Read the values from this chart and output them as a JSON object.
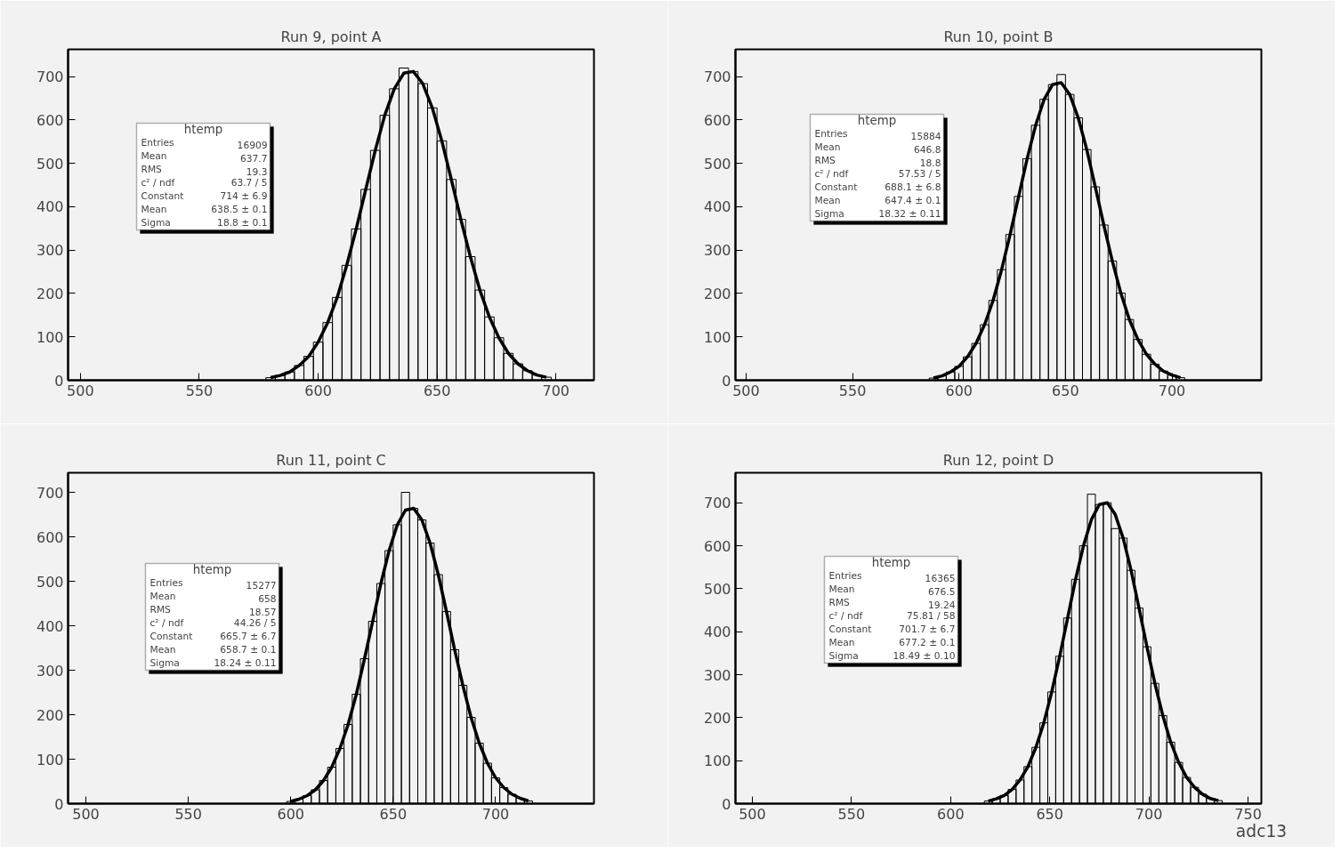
{
  "chart_data": [
    {
      "type": "histogram",
      "title": "Run 9, point A",
      "xlim": [
        494.8,
        716
      ],
      "ylim": [
        0,
        763
      ],
      "xticks": [
        500,
        550,
        600,
        650,
        700
      ],
      "yticks": [
        0,
        100,
        200,
        300,
        400,
        500,
        600,
        700
      ],
      "grid": false,
      "series": [
        {
          "color": "#000000",
          "bins": [
            578,
            582,
            586,
            590,
            594,
            598,
            602,
            606,
            610,
            614,
            618,
            622,
            626,
            630,
            634,
            638,
            642,
            646,
            650,
            654,
            658,
            662,
            666,
            670,
            674,
            678,
            682,
            686,
            690,
            694,
            698
          ],
          "values": [
            6,
            11,
            19,
            34,
            55,
            88,
            133,
            191,
            265,
            349,
            440,
            530,
            611,
            672,
            720,
            712,
            684,
            628,
            552,
            463,
            371,
            285,
            208,
            146,
            98,
            62,
            38,
            22,
            12,
            7
          ]
        },
        {
          "type": "line",
          "color": "#000000",
          "x": [
            580,
            584,
            588,
            592,
            596,
            600,
            604,
            608,
            612,
            616,
            620,
            624,
            628,
            632,
            636,
            640,
            644,
            648,
            652,
            656,
            660,
            664,
            668,
            672,
            676,
            680,
            684,
            688,
            692,
            696
          ],
          "values": [
            6,
            11,
            19,
            34,
            55,
            88,
            133,
            191,
            265,
            349,
            440,
            530,
            611,
            672,
            708,
            712,
            684,
            628,
            552,
            463,
            371,
            285,
            208,
            146,
            98,
            62,
            38,
            22,
            12,
            7
          ]
        }
      ],
      "annotations": [
        "htemp",
        "Entries",
        "16909",
        "Mean",
        "637.7",
        "RMS",
        "19.3",
        "c² / ndf",
        "63.7 / 5",
        "Constant",
        "714 ± 6.9",
        "Mean",
        "638.5 ± 0.1",
        "Sigma",
        "18.8 ± 0.1"
      ]
    },
    {
      "type": "histogram",
      "title": "Run 10, point B",
      "xlim": [
        495,
        742
      ],
      "ylim": [
        0,
        763
      ],
      "xticks": [
        500,
        550,
        600,
        650,
        700
      ],
      "yticks": [
        0,
        100,
        200,
        300,
        400,
        500,
        600,
        700
      ],
      "grid": false,
      "series": [
        {
          "color": "#000000",
          "bins": [
            586,
            590,
            594,
            598,
            602,
            606,
            610,
            614,
            618,
            622,
            626,
            630,
            634,
            638,
            642,
            646,
            650,
            654,
            658,
            662,
            666,
            670,
            674,
            678,
            682,
            686,
            690,
            694,
            698,
            702,
            706
          ],
          "values": [
            5,
            10,
            19,
            32,
            54,
            85,
            128,
            184,
            255,
            336,
            424,
            511,
            588,
            648,
            682,
            705,
            659,
            605,
            532,
            446,
            358,
            275,
            201,
            140,
            94,
            60,
            37,
            21,
            12,
            6
          ]
        },
        {
          "type": "line",
          "color": "#000000",
          "x": [
            588,
            592,
            596,
            600,
            604,
            608,
            612,
            616,
            620,
            624,
            628,
            632,
            636,
            640,
            644,
            648,
            652,
            656,
            660,
            664,
            668,
            672,
            676,
            680,
            684,
            688,
            692,
            696,
            700,
            704
          ],
          "values": [
            5,
            10,
            19,
            32,
            54,
            85,
            128,
            184,
            255,
            336,
            424,
            511,
            588,
            648,
            682,
            686,
            659,
            605,
            532,
            446,
            358,
            275,
            201,
            140,
            94,
            60,
            37,
            21,
            12,
            6
          ]
        }
      ],
      "annotations": [
        "htemp",
        "Entries",
        "15884",
        "Mean",
        "646.8",
        "RMS",
        "18.8",
        "c² / ndf",
        "57.53 / 5",
        "Constant",
        "688.1 ± 6.8",
        "Mean",
        "647.4 ± 0.1",
        "Sigma",
        "18.32 ± 0.11"
      ]
    },
    {
      "type": "histogram",
      "title": "Run 11, point C",
      "xlim": [
        491.3,
        748
      ],
      "ylim": [
        0,
        744
      ],
      "xticks": [
        500,
        550,
        600,
        650,
        700
      ],
      "yticks": [
        0,
        100,
        200,
        300,
        400,
        500,
        600,
        700
      ],
      "grid": false,
      "series": [
        {
          "color": "#000000",
          "bins": [
            598,
            602,
            606,
            610,
            614,
            618,
            622,
            626,
            630,
            634,
            638,
            642,
            646,
            650,
            654,
            658,
            662,
            666,
            670,
            674,
            678,
            682,
            686,
            690,
            694,
            698,
            702,
            706,
            710,
            714,
            718
          ],
          "values": [
            5,
            10,
            18,
            31,
            52,
            82,
            124,
            178,
            246,
            326,
            410,
            495,
            569,
            627,
            700,
            664,
            638,
            586,
            515,
            432,
            346,
            266,
            194,
            136,
            91,
            58,
            36,
            21,
            12,
            6
          ]
        },
        {
          "type": "line",
          "color": "#000000",
          "x": [
            600,
            604,
            608,
            612,
            616,
            620,
            624,
            628,
            632,
            636,
            640,
            644,
            648,
            652,
            656,
            660,
            664,
            668,
            672,
            676,
            680,
            684,
            688,
            692,
            696,
            700,
            704,
            708,
            712,
            716
          ],
          "values": [
            5,
            10,
            18,
            31,
            52,
            82,
            124,
            178,
            246,
            326,
            410,
            495,
            569,
            627,
            660,
            664,
            638,
            586,
            515,
            432,
            346,
            266,
            194,
            136,
            91,
            58,
            36,
            21,
            12,
            6
          ]
        }
      ],
      "annotations": [
        "htemp",
        "Entries",
        "15277",
        "Mean",
        "658",
        "RMS",
        "18.57",
        "c² / ndf",
        "44.26 / 5",
        "Constant",
        "665.7 ± 6.7",
        "Mean",
        "658.7 ± 0.1",
        "Sigma",
        "18.24 ± 0.11"
      ]
    },
    {
      "type": "histogram",
      "title": "Run 12, point D",
      "xlabel": "adc13",
      "xlim": [
        491.5,
        756.7
      ],
      "ylim": [
        0,
        770
      ],
      "xticks": [
        500,
        550,
        600,
        650,
        700,
        750
      ],
      "yticks": [
        0,
        100,
        200,
        300,
        400,
        500,
        600,
        700
      ],
      "grid": false,
      "series": [
        {
          "color": "#000000",
          "bins": [
            617,
            621,
            625,
            629,
            633,
            637,
            641,
            645,
            649,
            653,
            657,
            661,
            665,
            669,
            673,
            677,
            681,
            685,
            689,
            693,
            697,
            701,
            705,
            709,
            713,
            717,
            721,
            725,
            729,
            733,
            737
          ],
          "values": [
            6,
            11,
            19,
            33,
            55,
            86,
            131,
            188,
            260,
            343,
            432,
            522,
            600,
            720,
            696,
            700,
            640,
            618,
            543,
            455,
            365,
            280,
            205,
            143,
            96,
            61,
            38,
            22,
            12,
            7
          ]
        },
        {
          "type": "line",
          "color": "#000000",
          "x": [
            619,
            623,
            627,
            631,
            635,
            639,
            643,
            647,
            651,
            655,
            659,
            663,
            667,
            671,
            675,
            679,
            683,
            687,
            691,
            695,
            699,
            703,
            707,
            711,
            715,
            719,
            723,
            727,
            731,
            735
          ],
          "values": [
            6,
            11,
            19,
            33,
            55,
            86,
            131,
            188,
            260,
            343,
            432,
            522,
            600,
            661,
            696,
            700,
            673,
            618,
            543,
            455,
            365,
            280,
            205,
            143,
            96,
            61,
            38,
            22,
            12,
            7
          ]
        }
      ],
      "annotations": [
        "htemp",
        "Entries",
        "16365",
        "Mean",
        "676.5",
        "RMS",
        "19.24",
        "c² / ndf",
        "75.81 / 58",
        "Constant",
        "701.7 ± 6.7",
        "Mean",
        "677.2 ± 0.1",
        "Sigma",
        "18.49 ± 0.10"
      ]
    }
  ]
}
